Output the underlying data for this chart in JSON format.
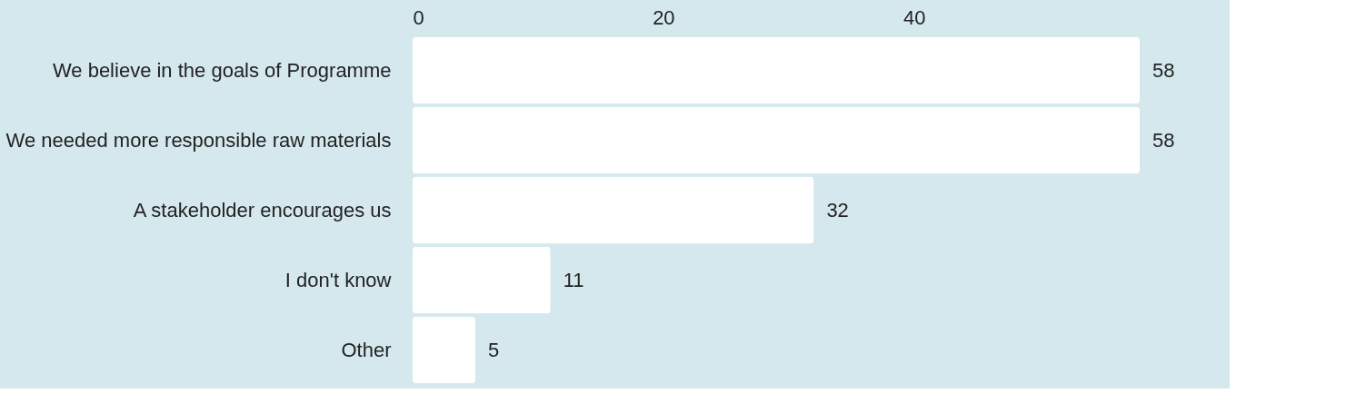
{
  "chart_data": {
    "type": "bar",
    "orientation": "horizontal",
    "categories": [
      "We believe in the goals of Programme",
      "We needed more responsible raw materials",
      "A stakeholder encourages us",
      "I don't know",
      "Other"
    ],
    "values": [
      58,
      58,
      32,
      11,
      5
    ],
    "color": "#ffffff",
    "xlim": [
      0,
      58
    ],
    "xticks": [
      0,
      20,
      40
    ],
    "data_labels": true
  }
}
